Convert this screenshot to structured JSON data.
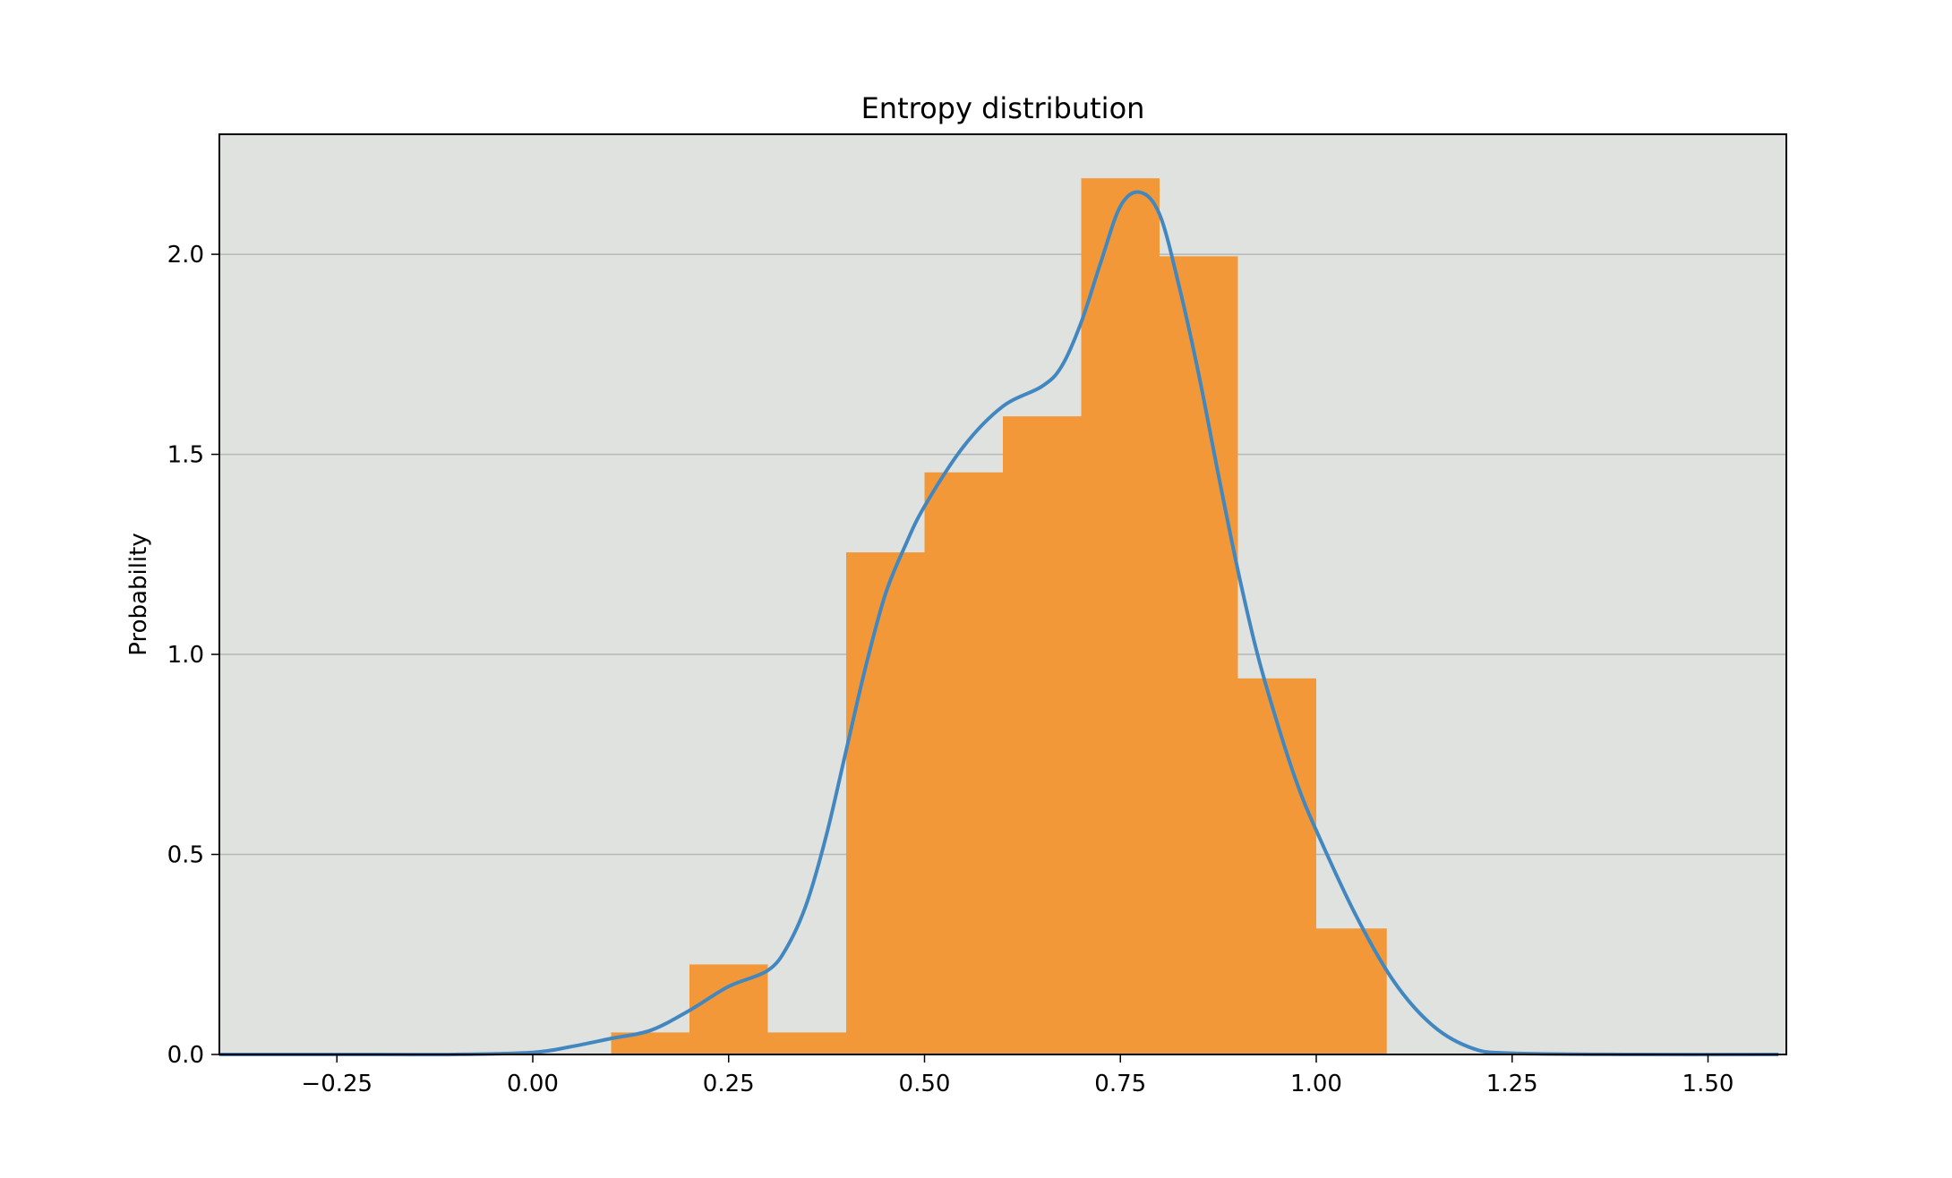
{
  "chart_data": {
    "type": "bar",
    "title": "Entropy distribution",
    "xlabel": "",
    "ylabel": "Probability",
    "xlim": [
      -0.4,
      1.6
    ],
    "ylim": [
      0,
      2.3
    ],
    "xticks": [
      -0.25,
      0.0,
      0.25,
      0.5,
      0.75,
      1.0,
      1.25,
      1.5
    ],
    "xtick_labels": [
      "−0.25",
      "0.00",
      "0.25",
      "0.50",
      "0.75",
      "1.00",
      "1.25",
      "1.50"
    ],
    "yticks": [
      0.0,
      0.5,
      1.0,
      1.5,
      2.0
    ],
    "ytick_labels": [
      "0.0",
      "0.5",
      "1.0",
      "1.5",
      "2.0"
    ],
    "grid": "horizontal",
    "bins": [
      {
        "x0": 0.1,
        "x1": 0.2,
        "value": 0.055
      },
      {
        "x0": 0.2,
        "x1": 0.3,
        "value": 0.225
      },
      {
        "x0": 0.3,
        "x1": 0.4,
        "value": 0.055
      },
      {
        "x0": 0.4,
        "x1": 0.5,
        "value": 1.255
      },
      {
        "x0": 0.5,
        "x1": 0.6,
        "value": 1.455
      },
      {
        "x0": 0.6,
        "x1": 0.7,
        "value": 1.595
      },
      {
        "x0": 0.7,
        "x1": 0.8,
        "value": 2.19
      },
      {
        "x0": 0.8,
        "x1": 0.9,
        "value": 1.995
      },
      {
        "x0": 0.9,
        "x1": 1.0,
        "value": 0.94
      },
      {
        "x0": 1.0,
        "x1": 1.09,
        "value": 0.315
      }
    ],
    "density_curve": {
      "x": [
        -0.4,
        -0.2,
        -0.1,
        0.0,
        0.05,
        0.1,
        0.15,
        0.2,
        0.25,
        0.3,
        0.325,
        0.35,
        0.375,
        0.4,
        0.425,
        0.45,
        0.475,
        0.5,
        0.55,
        0.6,
        0.65,
        0.675,
        0.7,
        0.725,
        0.75,
        0.775,
        0.8,
        0.825,
        0.85,
        0.875,
        0.9,
        0.925,
        0.95,
        0.975,
        1.0,
        1.05,
        1.1,
        1.15,
        1.2,
        1.25,
        1.4,
        1.59
      ],
      "y": [
        0.0,
        0.0,
        0.0,
        0.005,
        0.02,
        0.04,
        0.06,
        0.11,
        0.17,
        0.21,
        0.27,
        0.38,
        0.55,
        0.76,
        0.97,
        1.15,
        1.27,
        1.37,
        1.52,
        1.62,
        1.67,
        1.72,
        1.83,
        1.98,
        2.12,
        2.155,
        2.1,
        1.92,
        1.7,
        1.45,
        1.21,
        1.0,
        0.83,
        0.68,
        0.56,
        0.35,
        0.18,
        0.07,
        0.015,
        0.003,
        0.0,
        0.0
      ]
    },
    "colors": {
      "bars": "#f39839",
      "curve": "#4287bf",
      "plot_background": "#e0e2df",
      "grid": "#b4b8b6"
    }
  }
}
